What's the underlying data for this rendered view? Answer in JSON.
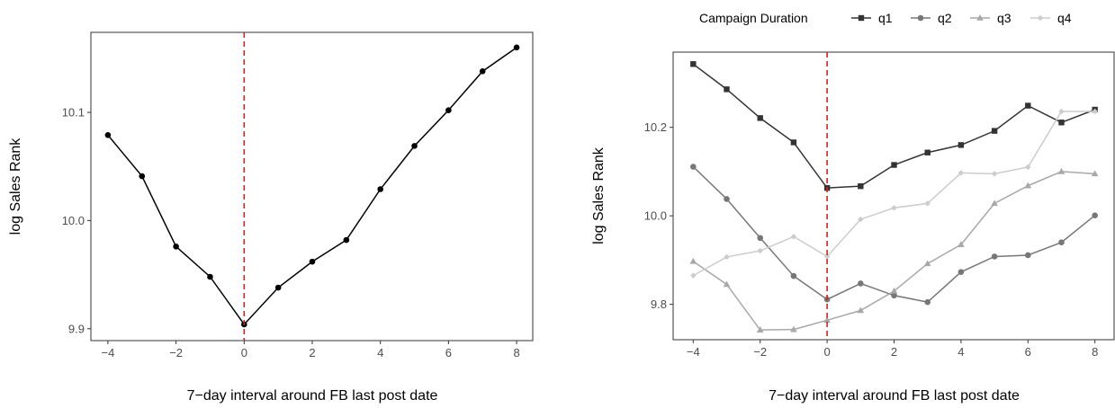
{
  "chart_data": [
    {
      "type": "line",
      "xlabel": "7−day interval around FB last post date",
      "ylabel": "log Sales Rank",
      "xlim": [
        -4.5,
        8.5
      ],
      "ylim": [
        9.889,
        10.174
      ],
      "x_ticks": [
        -4,
        -2,
        0,
        2,
        4,
        6,
        8
      ],
      "x_tick_labels": [
        "−4",
        "−2",
        "0",
        "2",
        "4",
        "6",
        "8"
      ],
      "y_ticks": [
        9.9,
        10.0,
        10.1
      ],
      "y_tick_labels": [
        "9.9",
        "10.0",
        "10.1"
      ],
      "vline": {
        "x": 0,
        "color": "#e41a1c",
        "style": "dashed"
      },
      "grid": false,
      "x": [
        -4,
        -3,
        -2,
        -1,
        0,
        1,
        2,
        3,
        4,
        5,
        6,
        7,
        8
      ],
      "series": [
        {
          "values": [
            10.079,
            10.041,
            9.976,
            9.948,
            9.904,
            9.938,
            9.962,
            9.982,
            10.029,
            10.069,
            10.102,
            10.138,
            10.16
          ],
          "color": "#000000",
          "marker": "circle"
        }
      ]
    },
    {
      "type": "line",
      "xlabel": "7−day interval around FB last post date",
      "ylabel": "log Sales Rank",
      "xlim": [
        -4.6,
        8.6
      ],
      "ylim": [
        9.72,
        10.37
      ],
      "x_ticks": [
        -4,
        -2,
        0,
        2,
        4,
        6,
        8
      ],
      "x_tick_labels": [
        "−4",
        "−2",
        "0",
        "2",
        "4",
        "6",
        "8"
      ],
      "y_ticks": [
        9.8,
        10.0,
        10.2
      ],
      "y_tick_labels": [
        "9.8",
        "10.0",
        "10.2"
      ],
      "vline": {
        "x": 0,
        "color": "#e41a1c",
        "style": "dashed"
      },
      "grid": false,
      "legend": {
        "title": "Campaign Duration",
        "position": "top"
      },
      "x": [
        -4,
        -3,
        -2,
        -1,
        0,
        1,
        2,
        3,
        4,
        5,
        6,
        7,
        8
      ],
      "series": [
        {
          "name": "q1",
          "color": "#333333",
          "marker": "square",
          "values": [
            10.343,
            10.286,
            10.221,
            10.166,
            10.063,
            10.067,
            10.115,
            10.143,
            10.16,
            10.192,
            10.249,
            10.211,
            10.24
          ]
        },
        {
          "name": "q2",
          "color": "#777777",
          "marker": "circle",
          "values": [
            10.111,
            10.038,
            9.95,
            9.864,
            9.811,
            9.847,
            9.82,
            9.805,
            9.873,
            9.908,
            9.911,
            9.94,
            10.001
          ]
        },
        {
          "name": "q3",
          "color": "#a8a8a8",
          "marker": "triangle",
          "values": [
            9.897,
            9.845,
            9.742,
            9.743,
            9.764,
            9.786,
            9.83,
            9.892,
            9.935,
            10.028,
            10.068,
            10.1,
            10.095
          ]
        },
        {
          "name": "q4",
          "color": "#cccccc",
          "marker": "diamond",
          "values": [
            9.865,
            9.907,
            9.921,
            9.953,
            9.908,
            9.992,
            10.018,
            10.028,
            10.097,
            10.095,
            10.11,
            10.236,
            10.236
          ]
        }
      ]
    }
  ]
}
